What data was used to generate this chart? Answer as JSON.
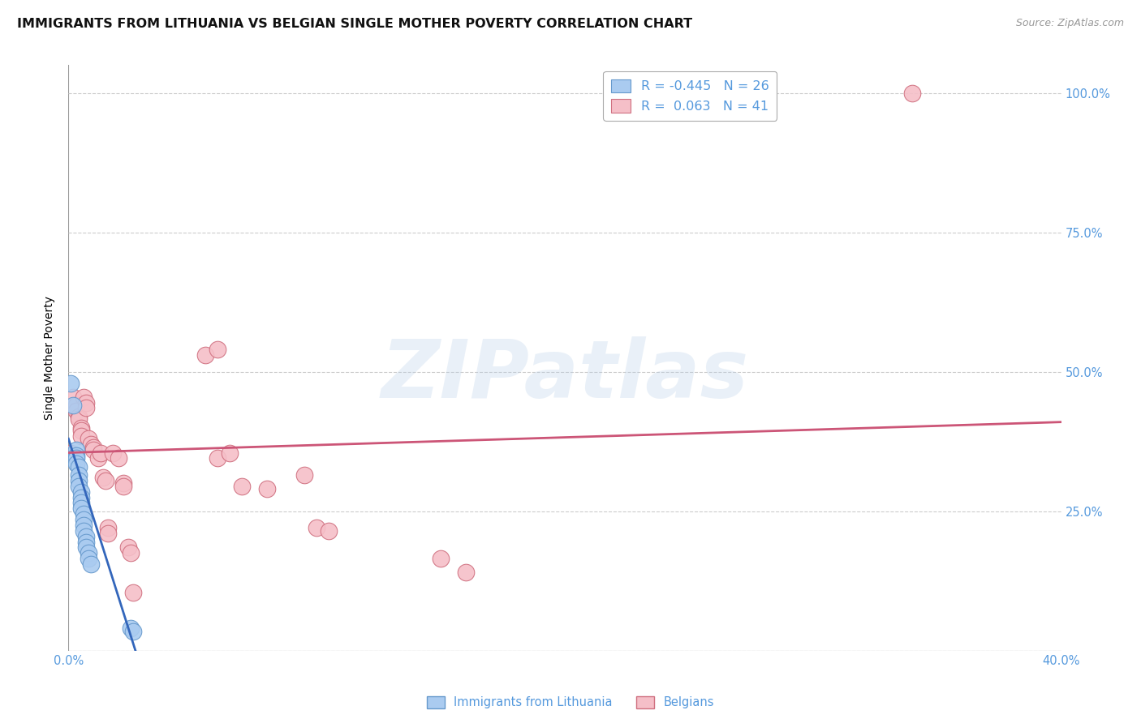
{
  "title": "IMMIGRANTS FROM LITHUANIA VS BELGIAN SINGLE MOTHER POVERTY CORRELATION CHART",
  "source": "Source: ZipAtlas.com",
  "ylabel": "Single Mother Poverty",
  "xlim": [
    0.0,
    0.4
  ],
  "ylim": [
    0.0,
    1.05
  ],
  "ytick_labels": [
    "",
    "25.0%",
    "50.0%",
    "75.0%",
    "100.0%"
  ],
  "ytick_positions": [
    0.0,
    0.25,
    0.5,
    0.75,
    1.0
  ],
  "legend_blue_r": "-0.445",
  "legend_blue_n": "26",
  "legend_pink_r": " 0.063",
  "legend_pink_n": "41",
  "blue_scatter": [
    [
      0.001,
      0.48
    ],
    [
      0.002,
      0.44
    ],
    [
      0.003,
      0.36
    ],
    [
      0.003,
      0.35
    ],
    [
      0.003,
      0.345
    ],
    [
      0.003,
      0.335
    ],
    [
      0.004,
      0.33
    ],
    [
      0.004,
      0.315
    ],
    [
      0.004,
      0.305
    ],
    [
      0.004,
      0.295
    ],
    [
      0.005,
      0.285
    ],
    [
      0.005,
      0.275
    ],
    [
      0.005,
      0.265
    ],
    [
      0.005,
      0.255
    ],
    [
      0.006,
      0.245
    ],
    [
      0.006,
      0.235
    ],
    [
      0.006,
      0.225
    ],
    [
      0.006,
      0.215
    ],
    [
      0.007,
      0.205
    ],
    [
      0.007,
      0.195
    ],
    [
      0.007,
      0.185
    ],
    [
      0.008,
      0.175
    ],
    [
      0.008,
      0.165
    ],
    [
      0.009,
      0.155
    ],
    [
      0.025,
      0.04
    ],
    [
      0.026,
      0.035
    ]
  ],
  "pink_scatter": [
    [
      0.001,
      0.355
    ],
    [
      0.002,
      0.455
    ],
    [
      0.003,
      0.44
    ],
    [
      0.003,
      0.43
    ],
    [
      0.004,
      0.42
    ],
    [
      0.004,
      0.415
    ],
    [
      0.005,
      0.4
    ],
    [
      0.005,
      0.395
    ],
    [
      0.005,
      0.385
    ],
    [
      0.006,
      0.455
    ],
    [
      0.007,
      0.445
    ],
    [
      0.007,
      0.435
    ],
    [
      0.008,
      0.38
    ],
    [
      0.009,
      0.37
    ],
    [
      0.01,
      0.365
    ],
    [
      0.01,
      0.36
    ],
    [
      0.012,
      0.345
    ],
    [
      0.013,
      0.355
    ],
    [
      0.014,
      0.31
    ],
    [
      0.015,
      0.305
    ],
    [
      0.016,
      0.22
    ],
    [
      0.016,
      0.21
    ],
    [
      0.018,
      0.355
    ],
    [
      0.02,
      0.345
    ],
    [
      0.022,
      0.3
    ],
    [
      0.022,
      0.295
    ],
    [
      0.024,
      0.185
    ],
    [
      0.025,
      0.175
    ],
    [
      0.026,
      0.105
    ],
    [
      0.06,
      0.345
    ],
    [
      0.065,
      0.355
    ],
    [
      0.07,
      0.295
    ],
    [
      0.08,
      0.29
    ],
    [
      0.095,
      0.315
    ],
    [
      0.1,
      0.22
    ],
    [
      0.105,
      0.215
    ],
    [
      0.15,
      0.165
    ],
    [
      0.055,
      0.53
    ],
    [
      0.06,
      0.54
    ],
    [
      0.34,
      1.0
    ],
    [
      0.16,
      0.14
    ]
  ],
  "blue_line": [
    [
      0.0,
      0.38
    ],
    [
      0.027,
      0.0
    ]
  ],
  "blue_dash_line": [
    [
      0.027,
      0.0
    ],
    [
      0.04,
      -0.11
    ]
  ],
  "pink_line": [
    [
      0.0,
      0.355
    ],
    [
      0.4,
      0.41
    ]
  ],
  "background_color": "#ffffff",
  "grid_color": "#cccccc",
  "blue_color": "#aacbf0",
  "blue_edge_color": "#6699cc",
  "blue_line_color": "#3366bb",
  "pink_color": "#f5bfc8",
  "pink_edge_color": "#d07080",
  "pink_line_color": "#cc5577",
  "watermark_text": "ZIPatlas",
  "title_fontsize": 11.5,
  "axis_label_fontsize": 10,
  "tick_fontsize": 10.5,
  "right_tick_color": "#5599dd",
  "source_color": "#999999"
}
